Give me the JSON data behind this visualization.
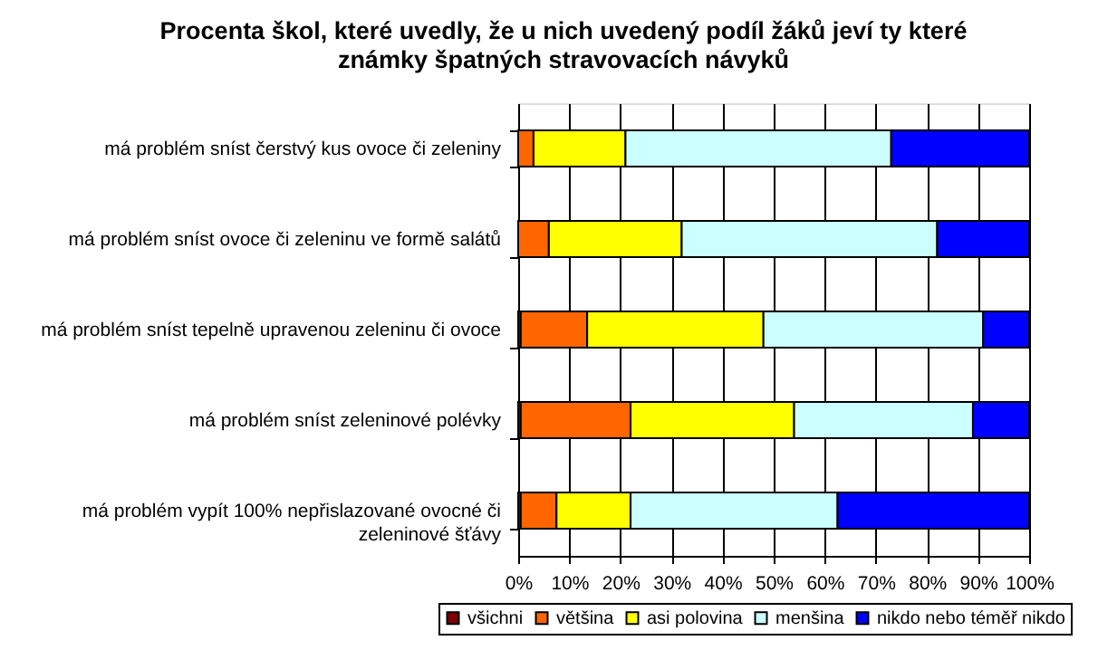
{
  "chart_data": {
    "type": "bar",
    "orientation": "horizontal",
    "stacked": true,
    "title": "Procenta škol, které uvedly, že u nich uvedený podíl žáků jeví ty které známky špatných stravovacích návyků",
    "categories": [
      "má problém sníst čerstvý kus ovoce či zeleniny",
      "má problém sníst ovoce či zeleninu ve formě salátů",
      "má problém sníst tepelně upravenou zeleninu či ovoce",
      "má problém sníst zeleninové polévky",
      "má problém vypít 100% nepřislazované ovocné či zeleninové šťávy"
    ],
    "series": [
      {
        "name": "všichni",
        "color": "#800000",
        "values": [
          null,
          null,
          0.5,
          0.5,
          0.5
        ]
      },
      {
        "name": "většina",
        "color": "#ff6600",
        "values": [
          3,
          6,
          13,
          21.5,
          7
        ]
      },
      {
        "name": "asi polovina",
        "color": "#ffff00",
        "values": [
          18,
          26,
          34.5,
          32,
          14.5
        ]
      },
      {
        "name": "menšina",
        "color": "#ccffff",
        "values": [
          52,
          50,
          43,
          35,
          40.5
        ]
      },
      {
        "name": "nikdo nebo téměř nikdo",
        "color": "#0000ff",
        "values": [
          27,
          18,
          9,
          11,
          37.5
        ]
      }
    ],
    "xlim": [
      0,
      100
    ],
    "xticks": [
      {
        "value": 0,
        "label": "0%"
      },
      {
        "value": 10,
        "label": "10%"
      },
      {
        "value": 20,
        "label": "20%"
      },
      {
        "value": 30,
        "label": "30%"
      },
      {
        "value": 40,
        "label": "40%"
      },
      {
        "value": 50,
        "label": "50%"
      },
      {
        "value": 60,
        "label": "60%"
      },
      {
        "value": 70,
        "label": "70%"
      },
      {
        "value": 80,
        "label": "80%"
      },
      {
        "value": 90,
        "label": "90%"
      },
      {
        "value": 100,
        "label": "100%"
      }
    ],
    "grid": "x",
    "legend": "bottom"
  }
}
